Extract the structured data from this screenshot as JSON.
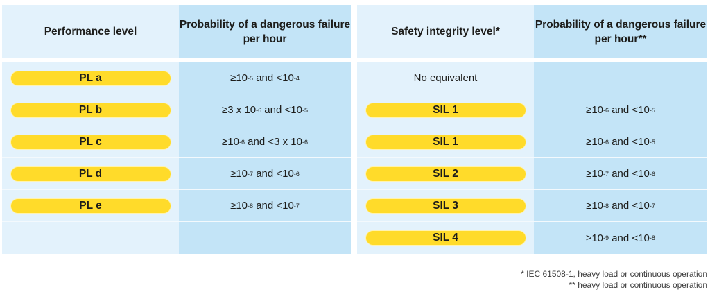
{
  "left_table": {
    "headers": [
      "Performance level",
      "Probability of a dangerous failure per hour"
    ],
    "rows": [
      {
        "level": "PL a",
        "prob": {
          "lo": "≥10",
          "lo_exp": "-5",
          "mid": " and <10",
          "hi_exp": "-4",
          "tail": ""
        }
      },
      {
        "level": "PL b",
        "prob": {
          "lo": "≥3 x 10",
          "lo_exp": "-6",
          "mid": " and <10",
          "hi_exp": "-5",
          "tail": ""
        }
      },
      {
        "level": "PL c",
        "prob": {
          "lo": "≥10",
          "lo_exp": "-6",
          "mid": " and <3 x 10",
          "hi_exp": "-6",
          "tail": ""
        }
      },
      {
        "level": "PL d",
        "prob": {
          "lo": "≥10",
          "lo_exp": "-7",
          "mid": " and <10",
          "hi_exp": "-6",
          "tail": ""
        }
      },
      {
        "level": "PL e",
        "prob": {
          "lo": "≥10",
          "lo_exp": "-8",
          "mid": " and <10",
          "hi_exp": "-7",
          "tail": ""
        }
      },
      {
        "level": "",
        "prob": null
      }
    ]
  },
  "right_table": {
    "headers": [
      "Safety integrity level*",
      "Probability of a dangerous failure per hour**"
    ],
    "rows": [
      {
        "level": "No equivalent",
        "plain": true,
        "prob": null
      },
      {
        "level": "SIL 1",
        "prob": {
          "lo": "≥10",
          "lo_exp": "-6",
          "mid": " and <10",
          "hi_exp": "-5"
        }
      },
      {
        "level": "SIL 1",
        "prob": {
          "lo": "≥10",
          "lo_exp": "-6",
          "mid": " and <10",
          "hi_exp": "-5"
        }
      },
      {
        "level": "SIL 2",
        "prob": {
          "lo": "≥10",
          "lo_exp": "-7",
          "mid": " and <10",
          "hi_exp": "-6"
        }
      },
      {
        "level": "SIL 3",
        "prob": {
          "lo": "≥10",
          "lo_exp": "-8",
          "mid": " and <10",
          "hi_exp": "-7"
        }
      },
      {
        "level": "SIL 4",
        "prob": {
          "lo": "≥10",
          "lo_exp": "-9",
          "mid": " and <10",
          "hi_exp": "-8"
        }
      }
    ]
  },
  "footnotes": [
    "* IEC 61508-1, heavy load or continuous operation",
    "** heavy load or continuous operation"
  ],
  "colors": {
    "pill": "#ffdb2a",
    "light_cell": "#e3f2fc",
    "dark_cell": "#c3e4f7"
  }
}
